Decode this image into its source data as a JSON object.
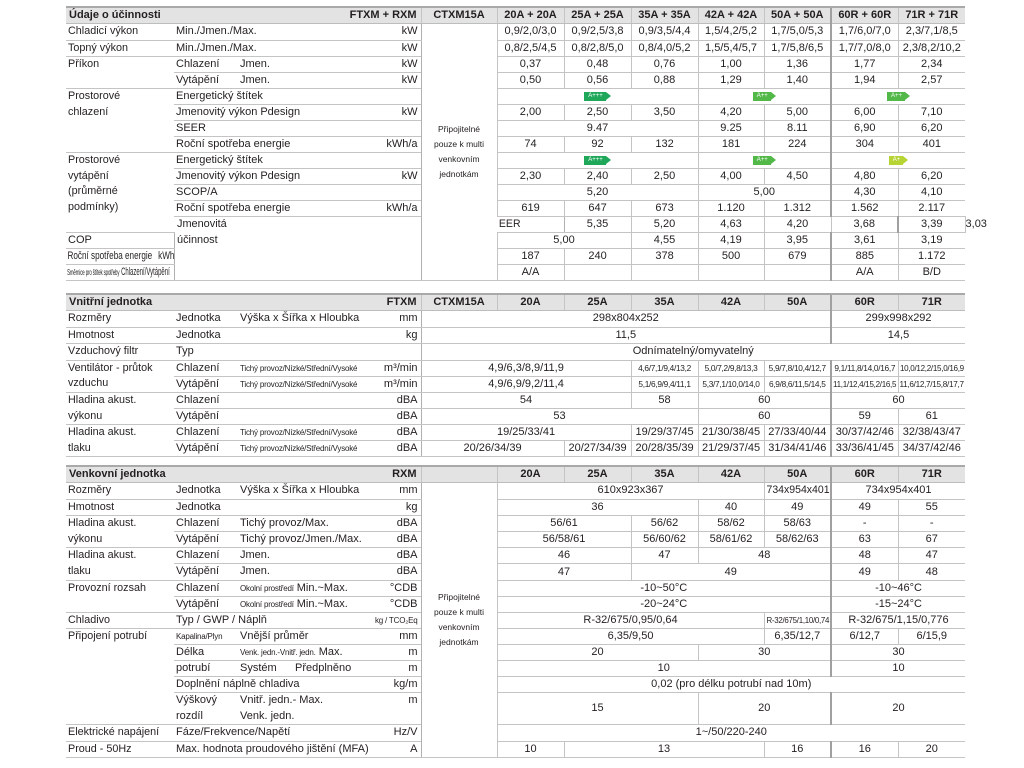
{
  "colors": {
    "header_bg": "#e3e3e3",
    "label_A+++": "#1fa85a",
    "label_A++": "#52b848",
    "label_A+": "#b6d433"
  },
  "tables": [
    {
      "title": "Údaje o účinnosti",
      "model": "FTXM + RXM",
      "c0": "CTXM15A",
      "cols": [
        "20A + 20A",
        "25A + 25A",
        "35A + 35A",
        "42A + 42A",
        "50A + 50A",
        "60R + 60R",
        "71R + 71R"
      ],
      "note": "Připojitelné\npouze k multi\nvenkovním\njednotkám",
      "rows": [
        {
          "group": "Chladicí výkon",
          "gspan": 1,
          "label": [
            "Min./Jmen./Max."
          ],
          "unit": "kW",
          "cells": [
            "0,9/2,0/3,0",
            "0,9/2,5/3,8",
            "0,9/3,5/4,4",
            "1,5/4,2/5,2",
            "1,7/5,0/5,3",
            "1,7/6,0/7,0",
            "2,3/7,1/8,5"
          ]
        },
        {
          "group": "Topný výkon",
          "gspan": 1,
          "label": [
            "Min./Jmen./Max."
          ],
          "unit": "kW",
          "cells": [
            "0,8/2,5/4,5",
            "0,8/2,8/5,0",
            "0,8/4,0/5,2",
            "1,5/5,4/5,7",
            "1,7/5,8/6,5",
            "1,7/7,0/8,0",
            "2,3/8,2/10,2"
          ]
        },
        {
          "group": "Příkon",
          "gspan": 2,
          "label": [
            "Chlazení",
            "",
            "Jmen."
          ],
          "unit": "kW",
          "cells": [
            "0,37",
            "0,48",
            "0,76",
            "1,00",
            "1,36",
            "1,77",
            "2,34"
          ]
        },
        {
          "label": [
            "Vytápění",
            "",
            "Jmen."
          ],
          "unit": "kW",
          "cells": [
            "0,50",
            "0,56",
            "0,88",
            "1,29",
            "1,40",
            "1,94",
            "2,57"
          ]
        },
        {
          "group": "Prostorové\nchlazení",
          "gspan": 4,
          "label": [
            "Energetický štítek"
          ],
          "unit": "",
          "cells": [
            {
              "badge": "A+++",
              "span": 3
            },
            {
              "badge": "A++",
              "span": 2
            },
            {
              "badge": "A++",
              "span": 2
            }
          ]
        },
        {
          "label": [
            "Jmenovitý výkon",
            "",
            "Pdesign"
          ],
          "unit": "kW",
          "cells": [
            "2,00",
            "2,50",
            "3,50",
            "4,20",
            "5,00",
            "6,00",
            "7,10"
          ]
        },
        {
          "label": [
            "SEER"
          ],
          "unit": "",
          "cells": [
            {
              "t": "9.47",
              "span": 3
            },
            "9.25",
            "8.11",
            "6,90",
            "6,20"
          ]
        },
        {
          "label": [
            "Roční spotřeba energie"
          ],
          "unit": "kWh/a",
          "cells": [
            "74",
            "92",
            "132",
            "181",
            "224",
            "304",
            "401"
          ]
        },
        {
          "group": "Prostorové\nvytápění\n(průměrné\npodmínky)",
          "gspan": 5,
          "label": [
            "Energetický štítek"
          ],
          "unit": "",
          "cells": [
            {
              "badge": "A+++",
              "span": 3
            },
            {
              "badge": "A++",
              "span": 2
            },
            {
              "badge": "A+",
              "span": 2
            }
          ]
        },
        {
          "label": [
            "Jmenovitý výkon",
            "",
            "Pdesign"
          ],
          "unit": "kW",
          "cells": [
            "2,30",
            "2,40",
            "2,50",
            "4,00",
            "4,50",
            "4,80",
            "6,20"
          ]
        },
        {
          "label": [
            "SCOP/A"
          ],
          "unit": "",
          "cells": [
            {
              "t": "5,20",
              "span": 3
            },
            {
              "t": "5,00",
              "span": 2
            },
            "4,30",
            "4,10"
          ]
        },
        {
          "label": [
            "Roční spotřeba energie"
          ],
          "unit": "kWh/a",
          "cells": [
            "619",
            "647",
            "673",
            "1.120",
            "1.312",
            "1.562",
            "2.117"
          ]
        },
        {
          "group": "Jmenovitá\núčinnost",
          "gspan": 4,
          "label": [
            "EER"
          ],
          "unit": "",
          "cells": [
            "5,35",
            "5,20",
            "4,63",
            "4,20",
            "3,68",
            "3,39",
            "3,03"
          ]
        },
        {
          "label": [
            "COP"
          ],
          "unit": "",
          "cells": [
            {
              "t": "5,00",
              "span": 2
            },
            "4,55",
            "4,19",
            "3,95",
            "3,61",
            "3,19"
          ]
        },
        {
          "label": [
            "Roční spotřeba energie"
          ],
          "unit": "kWh",
          "cells": [
            "187",
            "240",
            "378",
            "500",
            "679",
            "885",
            "1.172"
          ]
        },
        {
          "label": [
            {
              "t": "Směrnice pro štítek spotřeby",
              "small": true
            },
            "",
            "Chlazení/Vytápění"
          ],
          "unit": "",
          "cells": [
            "A/A",
            "",
            "",
            "",
            "",
            "A/A",
            "B/D"
          ]
        }
      ]
    },
    {
      "title": "Vnitřní jednotka",
      "model": "FTXM",
      "c0": "CTXM15A",
      "cols": [
        "20A",
        "25A",
        "35A",
        "42A",
        "50A",
        "60R",
        "71R"
      ],
      "rows": [
        {
          "group": "Rozměry",
          "gspan": 1,
          "label": [
            "Jednotka",
            "Výška x Šířka x Hloubka"
          ],
          "unit": "mm",
          "cells": [
            {
              "t": "298x804x252",
              "span": 6
            },
            {
              "t": "299x998x292",
              "span": 2
            }
          ]
        },
        {
          "group": "Hmotnost",
          "gspan": 1,
          "label": [
            "Jednotka"
          ],
          "unit": "kg",
          "cells": [
            {
              "t": "11,5",
              "span": 6
            },
            {
              "t": "14,5",
              "span": 2
            }
          ]
        },
        {
          "group": "Vzduchový filtr",
          "gspan": 1,
          "label": [
            "Typ"
          ],
          "unit": "",
          "cells": [
            {
              "t": "Odnímatelný/omyvatelný",
              "span": 8
            }
          ]
        },
        {
          "group": "Ventilátor - průtok\nvzduchu",
          "gspan": 2,
          "label": [
            "Chlazení",
            {
              "t": "Tichý provoz/Nízké/Střední/Vysoké",
              "small": true
            }
          ],
          "unit": "m³/min",
          "cells": [
            {
              "t": "4,9/6,3/8,9/11,9",
              "span": 3
            },
            {
              "t": "4,6/7,1/9,4/13,2",
              "small": true
            },
            {
              "t": "5,0/7,2/9,8/13,3",
              "small": true
            },
            {
              "t": "5,9/7,8/10,4/12,7",
              "small": true
            },
            {
              "t": "9,1/11,8/14,0/16,7",
              "small": true
            },
            {
              "t": "10,0/12,2/15,0/16,9",
              "small": true
            }
          ]
        },
        {
          "label": [
            "Vytápění",
            {
              "t": "Tichý provoz/Nízké/Střední/Vysoké",
              "small": true
            }
          ],
          "unit": "m³/min",
          "cells": [
            {
              "t": "4,9/6,9/9,2/11,4",
              "span": 3
            },
            {
              "t": "5,1/6,9/9,4/11,1",
              "small": true
            },
            {
              "t": "5,3/7,1/10,0/14,0",
              "small": true
            },
            {
              "t": "6,9/8,6/11,5/14,5",
              "small": true
            },
            {
              "t": "11,1/12,4/15,2/16,5",
              "small": true
            },
            {
              "t": "11,6/12,7/15,8/17,7",
              "small": true
            }
          ]
        },
        {
          "group": "Hladina akust.\nvýkonu",
          "gspan": 2,
          "label": [
            "Chlazení"
          ],
          "unit": "dBA",
          "cells": [
            {
              "t": "54",
              "span": 3
            },
            "58",
            {
              "t": "60",
              "span": 2
            },
            {
              "t": "60",
              "span": 2
            }
          ]
        },
        {
          "label": [
            "Vytápění"
          ],
          "unit": "dBA",
          "cells": [
            {
              "t": "53",
              "span": 4
            },
            {
              "t": "60",
              "span": 2
            },
            "59",
            "61"
          ]
        },
        {
          "group": "Hladina akust.\ntlaku",
          "gspan": 2,
          "label": [
            "Chlazení",
            {
              "t": "Tichý provoz/Nízké/Střední/Vysoké",
              "small": true
            }
          ],
          "unit": "dBA",
          "cells": [
            {
              "t": "19/25/33/41",
              "span": 3
            },
            "19/29/37/45",
            "21/30/38/45",
            "27/33/40/44",
            "30/37/42/46",
            "32/38/43/47"
          ]
        },
        {
          "label": [
            "Vytápění",
            {
              "t": "Tichý provoz/Nízké/Střední/Vysoké",
              "small": true
            }
          ],
          "unit": "dBA",
          "cells": [
            {
              "t": "20/26/34/39",
              "span": 2
            },
            "20/27/34/39",
            "20/28/35/39",
            "21/29/37/45",
            "31/34/41/46",
            "33/36/41/45",
            "34/37/42/46"
          ]
        }
      ]
    },
    {
      "title": "Venkovní jednotka",
      "model": "RXM",
      "c0": "",
      "cols": [
        "20A",
        "25A",
        "35A",
        "42A",
        "50A",
        "60R",
        "71R"
      ],
      "note": "Připojitelné\npouze k multi\nvenkovním\njednotkám",
      "rows": [
        {
          "group": "Rozměry",
          "gspan": 1,
          "label": [
            "Jednotka",
            "Výška x Šířka x Hloubka"
          ],
          "unit": "mm",
          "cells": [
            {
              "t": "610x923x367",
              "span": 4
            },
            "734x954x401",
            {
              "t": "734x954x401",
              "span": 2
            }
          ]
        },
        {
          "group": "Hmotnost",
          "gspan": 1,
          "label": [
            "Jednotka"
          ],
          "unit": "kg",
          "cells": [
            {
              "t": "36",
              "span": 3
            },
            "40",
            "49",
            "49",
            "55"
          ]
        },
        {
          "group": "Hladina akust.\nvýkonu",
          "gspan": 2,
          "label": [
            "Chlazení",
            "Tichý provoz/Max."
          ],
          "unit": "dBA",
          "cells": [
            {
              "t": "56/61",
              "span": 2
            },
            "56/62",
            "58/62",
            "58/63",
            "-",
            "-"
          ]
        },
        {
          "label": [
            "Vytápění",
            "Tichý provoz/Jmen./Max."
          ],
          "unit": "dBA",
          "cells": [
            {
              "t": "56/58/61",
              "span": 2
            },
            "56/60/62",
            "58/61/62",
            "58/62/63",
            "63",
            "67"
          ]
        },
        {
          "group": "Hladina akust.\ntlaku",
          "gspan": 2,
          "label": [
            "Chlazení",
            "Jmen."
          ],
          "unit": "dBA",
          "cells": [
            {
              "t": "46",
              "span": 2
            },
            "47",
            {
              "t": "48",
              "span": 2
            },
            "48",
            "47"
          ]
        },
        {
          "label": [
            "Vytápění",
            "Jmen."
          ],
          "unit": "dBA",
          "cells": [
            {
              "t": "47",
              "span": 2
            },
            {
              "t": "49",
              "span": 3
            },
            "49",
            "48"
          ]
        },
        {
          "group": "Provozní rozsah",
          "gspan": 2,
          "label": [
            "Chlazení",
            {
              "t": "Okolní prostředí",
              "small": true
            },
            "Min.~Max."
          ],
          "unit": "°CDB",
          "cells": [
            {
              "t": "-10~50°C",
              "span": 5
            },
            {
              "t": "-10~46°C",
              "span": 2
            }
          ]
        },
        {
          "label": [
            "Vytápění",
            {
              "t": "Okolní prostředí",
              "small": true
            },
            "Min.~Max."
          ],
          "unit": "°CDB",
          "cells": [
            {
              "t": "-20~24°C",
              "span": 5
            },
            {
              "t": "-15~24°C",
              "span": 2
            }
          ]
        },
        {
          "group": "Chladivo",
          "gspan": 1,
          "label": [
            "Typ / GWP / Náplň"
          ],
          "unit": "kg / TCO₂Eq",
          "unit_small": true,
          "cells": [
            {
              "t": "R-32/675/0,95/0,64",
              "span": 4
            },
            {
              "t": "R-32/675/1,10/0,74",
              "small": true
            },
            {
              "t": "R-32/675/1,15/0,776",
              "span": 2
            }
          ]
        },
        {
          "group": "Připojení potrubí",
          "gspan": 5,
          "label": [
            {
              "t": "Kapalina/Plyn",
              "small": true
            },
            "Vnější průměr"
          ],
          "unit": "mm",
          "cells": [
            {
              "t": "6,35/9,50",
              "span": 4
            },
            "6,35/12,7",
            "6/12,7",
            "6/15,9"
          ]
        },
        {
          "label": [
            "Délka",
            {
              "t": "Venk. jedn.-Vnitř. jedn.",
              "small": true
            },
            "Max."
          ],
          "unit": "m",
          "cells": [
            {
              "t": "20",
              "span": 3
            },
            {
              "t": "30",
              "span": 2
            },
            {
              "t": "30",
              "span": 2
            }
          ]
        },
        {
          "label": [
            "potrubí",
            "Systém",
            "Předplněno"
          ],
          "unit": "m",
          "cells": [
            {
              "t": "10",
              "span": 5
            },
            {
              "t": "10",
              "span": 2
            }
          ]
        },
        {
          "label": [
            "Doplnění náplně chladiva"
          ],
          "unit": "kg/m",
          "cells": [
            {
              "t": "0,02 (pro délku potrubí nad 10m)",
              "span": 7
            }
          ]
        },
        {
          "tall": true,
          "label": [
            "Výškový\nrozdíl",
            "Vnitř. jedn.-\nVenk. jedn.",
            "Max."
          ],
          "unit": "m",
          "cells": [
            {
              "t": "15",
              "span": 3
            },
            {
              "t": "20",
              "span": 2
            },
            {
              "t": "20",
              "span": 2
            }
          ]
        },
        {
          "group": "Elektrické napájení",
          "gspan": 1,
          "label": [
            "Fáze/Frekvence/Napětí"
          ],
          "unit": "Hz/V",
          "cells": [
            {
              "t": "1~/50/220-240",
              "span": 7
            }
          ]
        },
        {
          "group": "Proud - 50Hz",
          "gspan": 1,
          "label": [
            "Max. hodnota proudového jištění (MFA)"
          ],
          "unit": "A",
          "cells": [
            "10",
            {
              "t": "13",
              "span": 3
            },
            "16",
            "16",
            "20"
          ]
        }
      ]
    }
  ]
}
